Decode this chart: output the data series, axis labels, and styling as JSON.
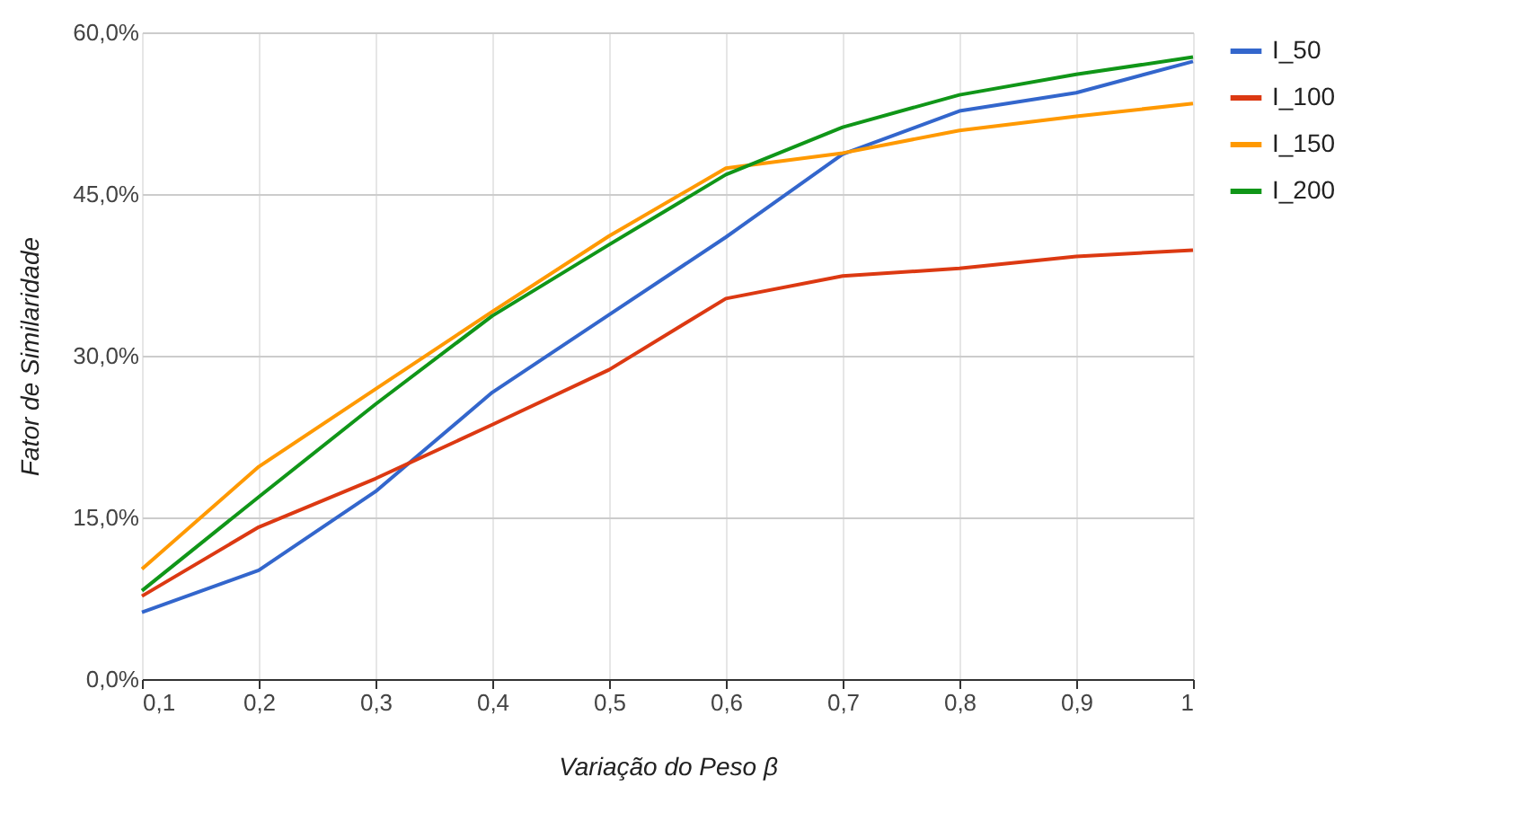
{
  "chart_data": {
    "type": "line",
    "xlabel": "Variação do Peso β",
    "ylabel": "Fator de Similaridade",
    "x": [
      0.1,
      0.2,
      0.3,
      0.4,
      0.5,
      0.6,
      0.7,
      0.8,
      0.9,
      1
    ],
    "series": [
      {
        "name": "I_50",
        "color": "#3366cc",
        "values": [
          6.2,
          10.1,
          17.4,
          26.6,
          33.8,
          41.0,
          48.7,
          52.7,
          54.4,
          57.3
        ]
      },
      {
        "name": "I_100",
        "color": "#dc3912",
        "values": [
          7.7,
          14.1,
          18.6,
          23.6,
          28.7,
          35.3,
          37.4,
          38.1,
          39.2,
          39.8
        ]
      },
      {
        "name": "I_150",
        "color": "#ff9900",
        "values": [
          10.2,
          19.7,
          26.9,
          34.1,
          41.1,
          47.4,
          48.8,
          50.9,
          52.2,
          53.4
        ]
      },
      {
        "name": "I_200",
        "color": "#109618",
        "values": [
          8.2,
          16.9,
          25.5,
          33.7,
          40.3,
          46.8,
          51.2,
          54.2,
          56.1,
          57.7
        ]
      }
    ],
    "xlim": [
      0.1,
      1
    ],
    "xticks": [
      {
        "value": 0.1,
        "label": "0,1"
      },
      {
        "value": 0.2,
        "label": "0,2"
      },
      {
        "value": 0.3,
        "label": "0,3"
      },
      {
        "value": 0.4,
        "label": "0,4"
      },
      {
        "value": 0.5,
        "label": "0,5"
      },
      {
        "value": 0.6,
        "label": "0,6"
      },
      {
        "value": 0.7,
        "label": "0,7"
      },
      {
        "value": 0.8,
        "label": "0,8"
      },
      {
        "value": 0.9,
        "label": "0,9"
      },
      {
        "value": 1,
        "label": "1"
      }
    ],
    "ylim": [
      0,
      60
    ],
    "yticks": [
      {
        "value": 0,
        "label": "0,0%"
      },
      {
        "value": 15,
        "label": "15,0%"
      },
      {
        "value": 30,
        "label": "30,0%"
      },
      {
        "value": 45,
        "label": "45,0%"
      },
      {
        "value": 60,
        "label": "60,0%"
      }
    ],
    "grid": true,
    "legend": "top right",
    "line_style": "solid",
    "marker": "none"
  }
}
